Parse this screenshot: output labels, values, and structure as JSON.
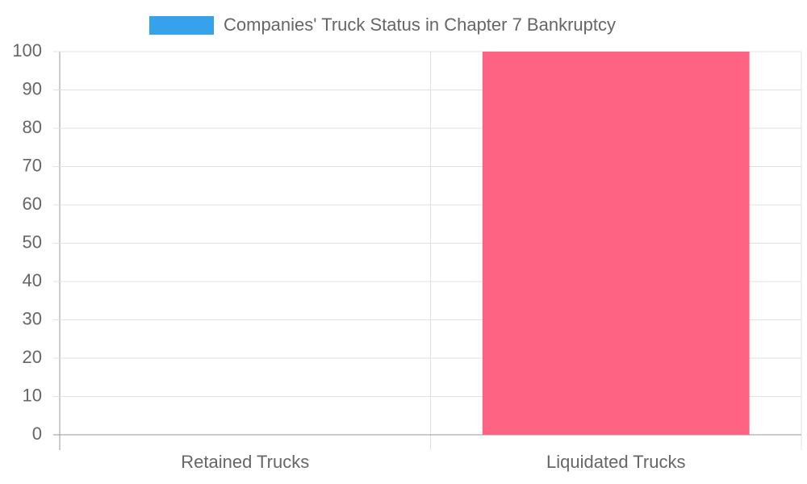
{
  "chart_data": {
    "type": "bar",
    "categories": [
      "Retained Trucks",
      "Liquidated Trucks"
    ],
    "series": [
      {
        "name": "Companies' Truck Status in Chapter 7 Bankruptcy",
        "colors": [
          "#36a2eb",
          "#ff6384"
        ],
        "values": [
          0,
          100
        ]
      }
    ],
    "ylim": [
      0,
      100
    ],
    "yticks": [
      0,
      10,
      20,
      30,
      40,
      50,
      60,
      70,
      80,
      90,
      100
    ],
    "grid": true,
    "legend": "top"
  }
}
